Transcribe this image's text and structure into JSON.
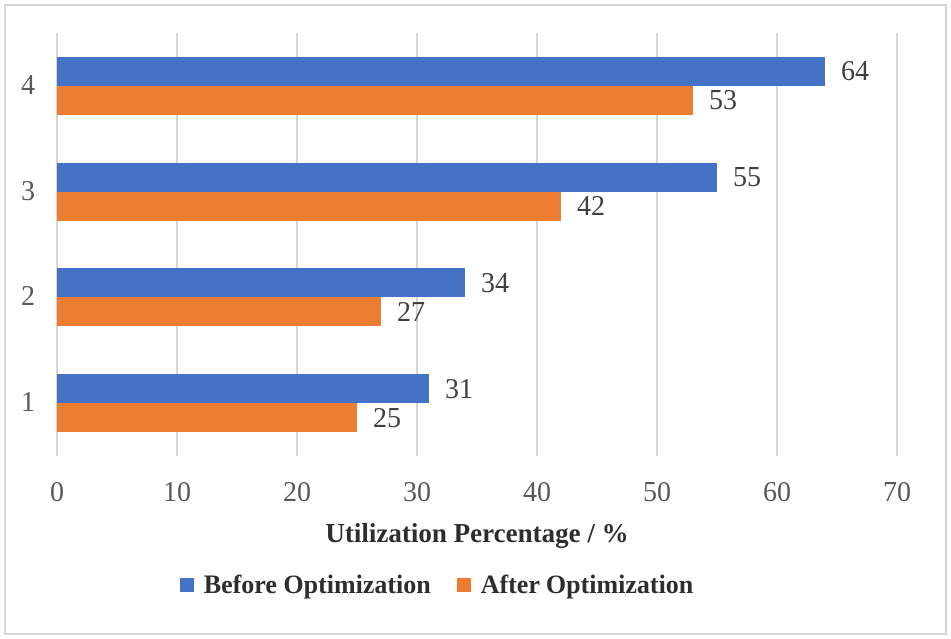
{
  "chart_data": {
    "type": "bar",
    "orientation": "horizontal",
    "title": "",
    "categories": [
      "4",
      "3",
      "2",
      "1"
    ],
    "categories_order": "top-to-bottom",
    "series": [
      {
        "name": "Before Optimization",
        "color": "#4472C4",
        "values": [
          64,
          55,
          34,
          31
        ]
      },
      {
        "name": "After Optimization",
        "color": "#ED7D31",
        "values": [
          53,
          42,
          27,
          25
        ]
      }
    ],
    "data_labels_shown": true,
    "xlabel": "Utilization Percentage / %",
    "ylabel": "",
    "xlim": [
      0,
      70
    ],
    "xticks": [
      0,
      10,
      20,
      30,
      40,
      50,
      60,
      70
    ],
    "grid": true,
    "legend_position": "bottom",
    "colors": {
      "gridline": "#D6D6D6",
      "tick_label": "#595959",
      "category_label": "#595959",
      "value_label": "#3F3F3F",
      "axis_title": "#2E2E2E",
      "legend_text": "#2E2E2E",
      "figure_border": "#D6D6D6",
      "background": "#FFFFFF"
    }
  }
}
